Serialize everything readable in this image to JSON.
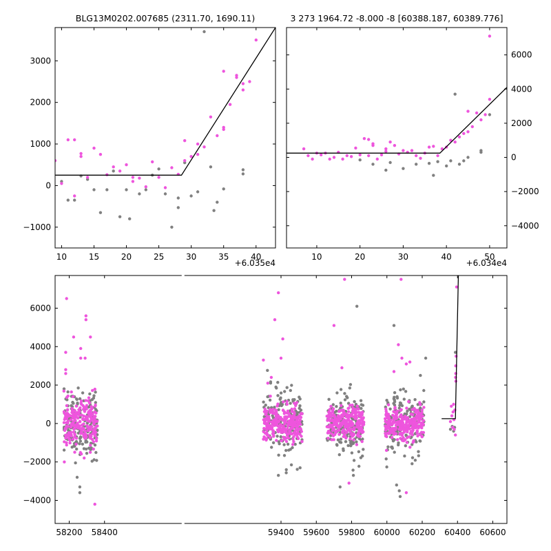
{
  "colors": {
    "primary_points": "#ee55dd",
    "secondary_points": "#808080",
    "model_line": "#000000"
  },
  "chart_data": [
    {
      "type": "scatter",
      "title": "BLG13M0202.007685 (2311.70, 1690.11)",
      "x_offset_label": "+6.035e4",
      "xlim": [
        9,
        43
      ],
      "ylim": [
        -1500,
        3800
      ],
      "xticks": [
        10,
        15,
        20,
        25,
        30,
        35,
        40
      ],
      "yticks": [
        -1000,
        0,
        1000,
        2000,
        3000
      ],
      "ytick_side": "left",
      "series": [
        {
          "color": "#808080",
          "points": [
            [
              10,
              100
            ],
            [
              11,
              -350
            ],
            [
              12,
              -350
            ],
            [
              13,
              230
            ],
            [
              14,
              150
            ],
            [
              15,
              -100
            ],
            [
              16,
              -650
            ],
            [
              17,
              -100
            ],
            [
              18,
              350
            ],
            [
              19,
              -750
            ],
            [
              20,
              -100
            ],
            [
              20.5,
              -800
            ],
            [
              22,
              -200
            ],
            [
              23,
              -100
            ],
            [
              24,
              250
            ],
            [
              25,
              400
            ],
            [
              26,
              -200
            ],
            [
              27,
              -1000
            ],
            [
              28,
              -300
            ],
            [
              28,
              -530
            ],
            [
              29,
              550
            ],
            [
              30,
              -250
            ],
            [
              31,
              -150
            ],
            [
              32,
              3700
            ],
            [
              33,
              450
            ],
            [
              33.5,
              -600
            ],
            [
              34,
              -400
            ],
            [
              35,
              -80
            ],
            [
              38,
              280
            ],
            [
              38,
              380
            ]
          ]
        },
        {
          "color": "#ee55dd",
          "points": [
            [
              9,
              600
            ],
            [
              10,
              50
            ],
            [
              11,
              1100
            ],
            [
              12,
              1100
            ],
            [
              12,
              -250
            ],
            [
              13,
              700
            ],
            [
              13,
              770
            ],
            [
              14,
              200
            ],
            [
              15,
              900
            ],
            [
              16,
              750
            ],
            [
              17,
              260
            ],
            [
              18,
              450
            ],
            [
              19,
              350
            ],
            [
              20,
              500
            ],
            [
              21,
              200
            ],
            [
              21,
              100
            ],
            [
              22,
              180
            ],
            [
              23,
              -30
            ],
            [
              24,
              570
            ],
            [
              25,
              200
            ],
            [
              26,
              -50
            ],
            [
              27,
              430
            ],
            [
              28,
              270
            ],
            [
              29,
              600
            ],
            [
              29,
              1080
            ],
            [
              30,
              700
            ],
            [
              31,
              750
            ],
            [
              31,
              1000
            ],
            [
              32,
              930
            ],
            [
              33,
              1650
            ],
            [
              34,
              1200
            ],
            [
              35,
              1350
            ],
            [
              35,
              1400
            ],
            [
              35,
              2750
            ],
            [
              36,
              1950
            ],
            [
              37,
              2600
            ],
            [
              37,
              2650
            ],
            [
              38,
              2300
            ],
            [
              38,
              2450
            ],
            [
              39,
              2500
            ],
            [
              40,
              3500
            ]
          ]
        }
      ],
      "model_line": [
        [
          9,
          250
        ],
        [
          28.5,
          250
        ],
        [
          43,
          3800
        ]
      ]
    },
    {
      "type": "scatter",
      "title": "3 273 1964.72 -8.000 -8 [60388.187, 60389.776]",
      "x_offset_label": "+6.034e4",
      "xlim": [
        3,
        54
      ],
      "ylim": [
        -5300,
        7600
      ],
      "xticks": [
        10,
        20,
        30,
        40,
        50
      ],
      "yticks": [
        -4000,
        -2000,
        0,
        2000,
        4000,
        6000
      ],
      "ytick_side": "right",
      "series": [
        {
          "color": "#808080",
          "points": [
            [
              20,
              -150
            ],
            [
              23,
              -400
            ],
            [
              26,
              -750
            ],
            [
              27,
              -300
            ],
            [
              30,
              -650
            ],
            [
              33,
              -400
            ],
            [
              36,
              -350
            ],
            [
              37,
              -1050
            ],
            [
              38,
              -250
            ],
            [
              40,
              -500
            ],
            [
              41,
              -200
            ],
            [
              42,
              3700
            ],
            [
              43,
              -400
            ],
            [
              44,
              -200
            ],
            [
              45,
              0
            ],
            [
              48,
              400
            ],
            [
              48,
              300
            ],
            [
              50,
              2500
            ]
          ]
        },
        {
          "color": "#ee55dd",
          "points": [
            [
              7,
              500
            ],
            [
              8,
              100
            ],
            [
              9,
              -100
            ],
            [
              10,
              250
            ],
            [
              11,
              150
            ],
            [
              12,
              250
            ],
            [
              13,
              -100
            ],
            [
              14,
              0
            ],
            [
              15,
              300
            ],
            [
              16,
              -100
            ],
            [
              17,
              100
            ],
            [
              18,
              50
            ],
            [
              19,
              550
            ],
            [
              20,
              150
            ],
            [
              21,
              1100
            ],
            [
              22,
              1050
            ],
            [
              22,
              100
            ],
            [
              23,
              700
            ],
            [
              23,
              800
            ],
            [
              24,
              -100
            ],
            [
              25,
              150
            ],
            [
              26,
              500
            ],
            [
              26,
              350
            ],
            [
              27,
              900
            ],
            [
              28,
              700
            ],
            [
              29,
              200
            ],
            [
              30,
              400
            ],
            [
              31,
              300
            ],
            [
              32,
              400
            ],
            [
              33,
              100
            ],
            [
              34,
              -50
            ],
            [
              35,
              250
            ],
            [
              36,
              600
            ],
            [
              37,
              650
            ],
            [
              38,
              100
            ],
            [
              39,
              500
            ],
            [
              40,
              600
            ],
            [
              41,
              1000
            ],
            [
              42,
              900
            ],
            [
              43,
              1200
            ],
            [
              44,
              1400
            ],
            [
              45,
              1500
            ],
            [
              45,
              2700
            ],
            [
              46,
              1800
            ],
            [
              47,
              2600
            ],
            [
              48,
              2200
            ],
            [
              49,
              2500
            ],
            [
              50,
              3400
            ],
            [
              50,
              7100
            ]
          ]
        }
      ],
      "model_line": [
        [
          3,
          250
        ],
        [
          38.5,
          250
        ],
        [
          54,
          4100
        ]
      ]
    },
    {
      "type": "scatter",
      "xlim": [
        58120,
        60680
      ],
      "ylim": [
        -5200,
        7700
      ],
      "xticks": [
        58200,
        58400,
        59400,
        59600,
        59800,
        60000,
        60200,
        60400,
        60600
      ],
      "yticks": [
        -4000,
        -2000,
        0,
        2000,
        4000,
        6000
      ],
      "ytick_side": "left",
      "broken_axis_gap_x": [
        58420,
        59270
      ],
      "seasons": [
        {
          "x_range": [
            58170,
            58360
          ],
          "pink_sd": 620,
          "grey_sd": 850,
          "n_pink": 230,
          "n_grey": 170
        },
        {
          "x_range": [
            59300,
            59520
          ],
          "pink_sd": 450,
          "grey_sd": 900,
          "n_pink": 260,
          "n_grey": 180
        },
        {
          "x_range": [
            59660,
            59870
          ],
          "pink_sd": 420,
          "grey_sd": 850,
          "n_pink": 250,
          "n_grey": 170
        },
        {
          "x_range": [
            59990,
            60210
          ],
          "pink_sd": 420,
          "grey_sd": 800,
          "n_pink": 260,
          "n_grey": 170
        }
      ],
      "outliers_pink": [
        [
          58185,
          6500
        ],
        [
          58180,
          3700
        ],
        [
          58180,
          2800
        ],
        [
          58180,
          2600
        ],
        [
          58225,
          4500
        ],
        [
          58265,
          3900
        ],
        [
          58265,
          3400
        ],
        [
          58295,
          5600
        ],
        [
          58295,
          5400
        ],
        [
          58290,
          3400
        ],
        [
          58320,
          4500
        ],
        [
          58345,
          -4200
        ],
        [
          59300,
          3300
        ],
        [
          59325,
          2100
        ],
        [
          59345,
          2400
        ],
        [
          59365,
          5400
        ],
        [
          59385,
          6800
        ],
        [
          59400,
          3400
        ],
        [
          59410,
          4400
        ],
        [
          59700,
          5100
        ],
        [
          59745,
          2900
        ],
        [
          59760,
          7500
        ],
        [
          59785,
          -3100
        ],
        [
          60040,
          2700
        ],
        [
          60065,
          4100
        ],
        [
          60080,
          7500
        ],
        [
          60110,
          3100
        ],
        [
          60130,
          3200
        ],
        [
          60085,
          3400
        ],
        [
          60110,
          -3600
        ]
      ],
      "outliers_grey": [
        [
          58260,
          -3300
        ],
        [
          58245,
          -2800
        ],
        [
          58260,
          -3600
        ],
        [
          59385,
          -2700
        ],
        [
          59430,
          -2400
        ],
        [
          59735,
          -3300
        ],
        [
          59810,
          -2700
        ],
        [
          59830,
          6100
        ],
        [
          60040,
          5100
        ],
        [
          60055,
          -3200
        ],
        [
          60070,
          -3500
        ],
        [
          60075,
          -3800
        ],
        [
          60220,
          3400
        ],
        [
          60190,
          2500
        ]
      ],
      "recent_pink": [
        [
          60360,
          100
        ],
        [
          60365,
          900
        ],
        [
          60368,
          400
        ],
        [
          60372,
          -200
        ],
        [
          60375,
          600
        ],
        [
          60378,
          1000
        ],
        [
          60380,
          200
        ],
        [
          60382,
          -300
        ],
        [
          60385,
          700
        ],
        [
          60388,
          -600
        ],
        [
          60389,
          2400
        ],
        [
          60390,
          3000
        ],
        [
          60390,
          2600
        ],
        [
          60391,
          2200
        ],
        [
          60392,
          3500
        ],
        [
          60395,
          7100
        ]
      ],
      "recent_grey": [
        [
          60360,
          -300
        ],
        [
          60370,
          -150
        ],
        [
          60378,
          -400
        ],
        [
          60384,
          -200
        ],
        [
          60388,
          3700
        ]
      ],
      "model_line": [
        [
          60310,
          250
        ],
        [
          60388,
          250
        ],
        [
          60405,
          7700
        ]
      ]
    }
  ]
}
